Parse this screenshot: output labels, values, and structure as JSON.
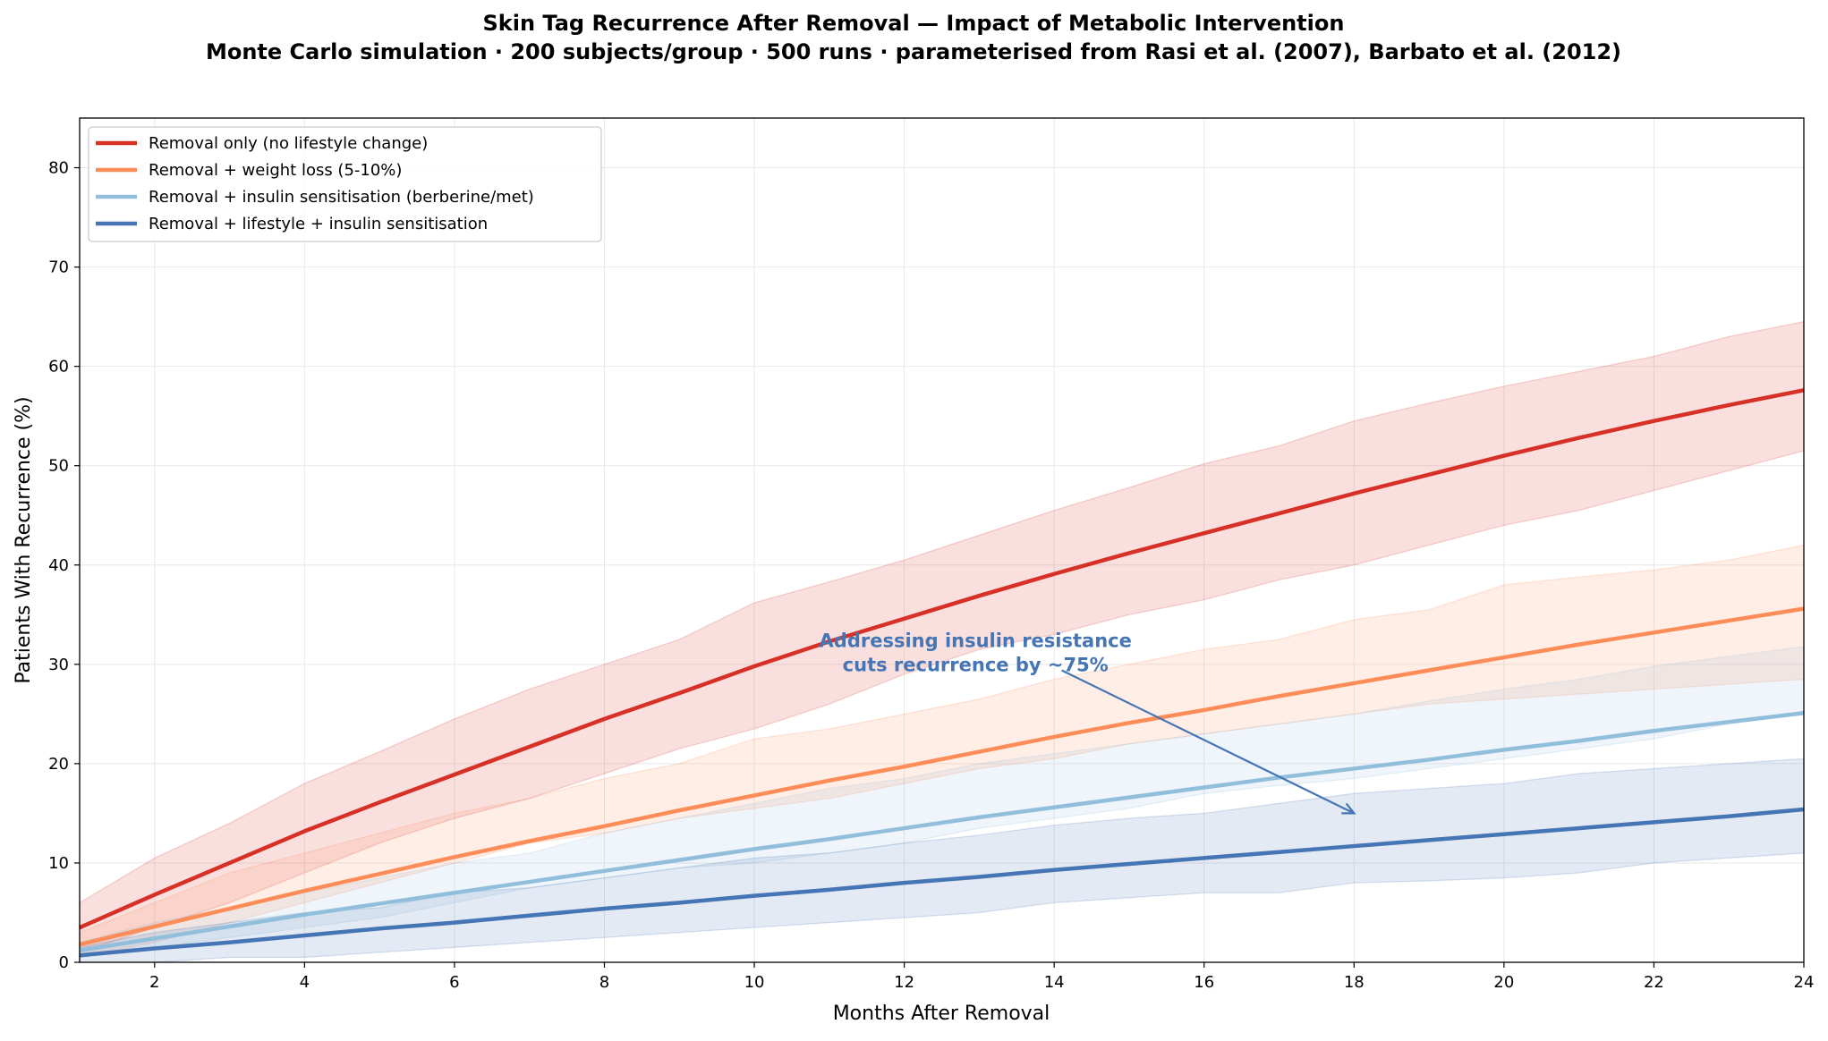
{
  "chart_data": {
    "type": "line",
    "title": "Skin Tag Recurrence After Removal — Impact of Metabolic Intervention",
    "subtitle": "Monte Carlo simulation · 200 subjects/group · 500 runs · parameterised from Rasi et al. (2007), Barbato et al. (2012)",
    "xlabel": "Months After Removal",
    "ylabel": "Patients With Recurrence (%)",
    "xlim": [
      1,
      24
    ],
    "ylim": [
      0,
      85
    ],
    "xticks": [
      2,
      4,
      6,
      8,
      10,
      12,
      14,
      16,
      18,
      20,
      22,
      24
    ],
    "yticks": [
      0,
      10,
      20,
      30,
      40,
      50,
      60,
      70,
      80
    ],
    "grid": true,
    "legend_position": "top-left",
    "x": [
      1,
      2,
      3,
      4,
      5,
      6,
      7,
      8,
      9,
      10,
      11,
      12,
      13,
      14,
      15,
      16,
      17,
      18,
      19,
      20,
      21,
      22,
      23,
      24
    ],
    "series": [
      {
        "name": "Removal only (no lifestyle change)",
        "color": "#d73027",
        "values": [
          3.5,
          6.8,
          10,
          13.2,
          16.1,
          18.9,
          21.7,
          24.5,
          27.1,
          29.8,
          32.3,
          34.6,
          36.9,
          39.1,
          41.2,
          43.2,
          45.2,
          47.2,
          49.1,
          51,
          52.8,
          54.5,
          56.1,
          57.6
        ],
        "upper": [
          6,
          10.5,
          14,
          18,
          21.2,
          24.5,
          27.5,
          30,
          32.5,
          36.2,
          38.3,
          40.5,
          43,
          45.5,
          47.8,
          50.2,
          52,
          54.5,
          56.3,
          58,
          59.5,
          61,
          63,
          64.5
        ],
        "lower": [
          1,
          3.5,
          6,
          9,
          12,
          14.5,
          16.5,
          19,
          21.5,
          23.5,
          26,
          29,
          31.5,
          33,
          35,
          36.5,
          38.5,
          40,
          42,
          44,
          45.5,
          47.5,
          49.5,
          51.5
        ]
      },
      {
        "name": "Removal + weight loss (5-10%)",
        "color": "#fc8d59",
        "values": [
          1.8,
          3.6,
          5.4,
          7.2,
          8.9,
          10.6,
          12.2,
          13.7,
          15.3,
          16.8,
          18.3,
          19.7,
          21.2,
          22.7,
          24.1,
          25.4,
          26.8,
          28.1,
          29.4,
          30.7,
          32,
          33.2,
          34.4,
          35.6
        ],
        "upper": [
          3,
          6,
          9,
          11,
          13,
          15,
          16.5,
          18.5,
          20,
          22.5,
          23.5,
          25,
          26.5,
          28.5,
          30,
          31.5,
          32.5,
          34.5,
          35.5,
          38,
          38.8,
          39.5,
          40.5,
          42
        ],
        "lower": [
          0.5,
          2,
          4,
          6,
          8,
          10,
          12,
          13,
          14.5,
          15.5,
          16.5,
          18,
          19.5,
          20.5,
          22,
          23,
          24,
          25,
          26,
          26.5,
          27,
          27.5,
          28,
          28.5
        ]
      },
      {
        "name": "Removal + insulin sensitisation (berberine/met)",
        "color": "#91bfdb",
        "values": [
          1.2,
          2.4,
          3.6,
          4.8,
          5.9,
          7,
          8.1,
          9.2,
          10.3,
          11.4,
          12.4,
          13.5,
          14.6,
          15.6,
          16.6,
          17.6,
          18.6,
          19.5,
          20.4,
          21.4,
          22.3,
          23.3,
          24.2,
          25.1
        ],
        "upper": [
          2,
          4,
          5.5,
          7,
          8.5,
          10,
          11,
          13,
          14.5,
          16,
          17.5,
          18.5,
          20,
          21,
          22,
          23,
          24,
          25,
          26.3,
          27.5,
          28.5,
          29.8,
          30.8,
          31.8
        ],
        "lower": [
          0.5,
          1.5,
          2.5,
          3.5,
          4.5,
          6,
          7.5,
          8.5,
          9.5,
          10,
          11,
          12,
          13.5,
          14.5,
          15.5,
          17,
          17.8,
          18.5,
          19.5,
          20.5,
          21.5,
          22.5,
          24,
          25
        ]
      },
      {
        "name": "Removal + lifestyle + insulin sensitisation",
        "color": "#4575b4",
        "values": [
          0.7,
          1.4,
          2,
          2.7,
          3.4,
          4,
          4.7,
          5.4,
          6,
          6.7,
          7.3,
          8,
          8.6,
          9.3,
          9.9,
          10.5,
          11.1,
          11.7,
          12.3,
          12.9,
          13.5,
          14.1,
          14.7,
          15.4
        ],
        "upper": [
          1.5,
          3,
          4,
          5,
          5.5,
          7,
          7.5,
          8.5,
          9.5,
          10.5,
          11,
          12,
          12.8,
          13.8,
          14.5,
          15,
          16,
          17,
          17.5,
          18,
          19,
          19.5,
          20,
          20.5
        ],
        "lower": [
          0,
          0,
          0.5,
          0.5,
          1,
          1.5,
          2,
          2.5,
          3,
          3.5,
          4,
          4.5,
          5,
          6,
          6.5,
          7,
          7,
          8,
          8.2,
          8.5,
          9,
          10,
          10.5,
          11
        ]
      }
    ],
    "annotation": {
      "lines": [
        "Addressing insulin resistance",
        "cuts recurrence by ~75%"
      ],
      "color": "#4575b4",
      "text_at": [
        12.95,
        31
      ],
      "arrow_to": [
        18,
        15
      ]
    }
  }
}
